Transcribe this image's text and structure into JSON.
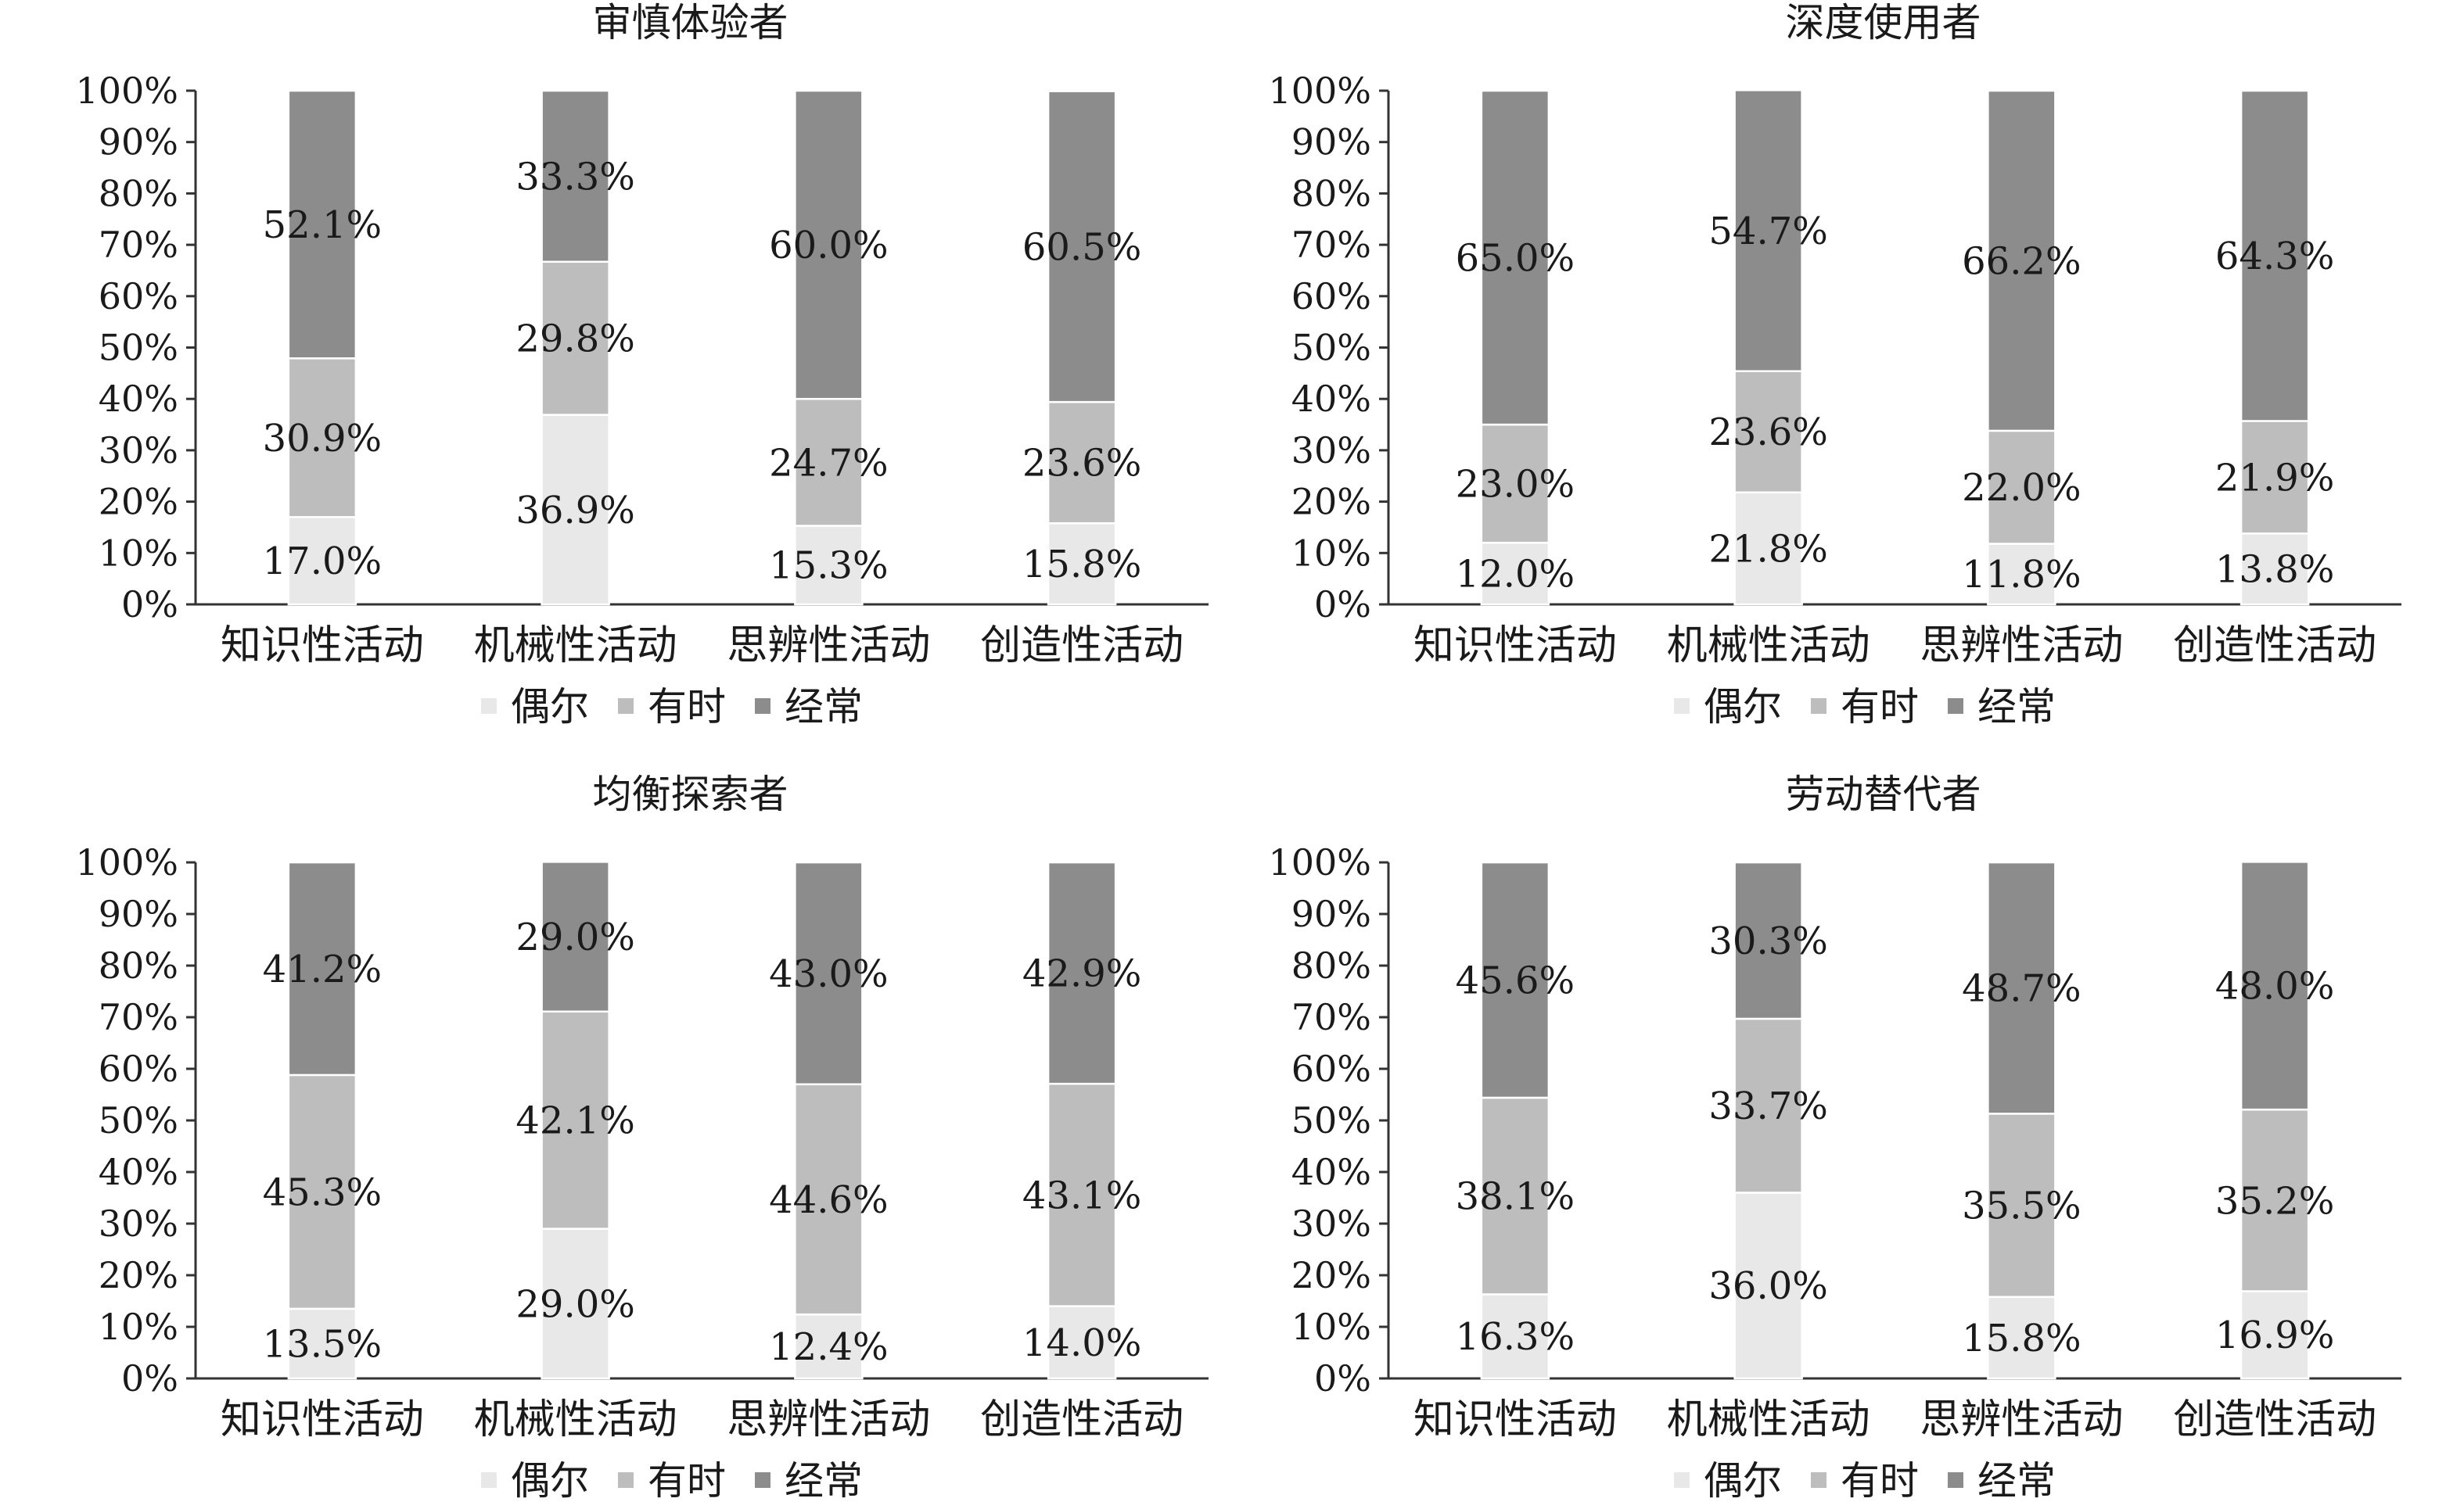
{
  "colors": {
    "occasionally": "#e8e8e8",
    "sometimes": "#bdbdbd",
    "often": "#8c8c8c",
    "axis": "#333333"
  },
  "chart_data": [
    {
      "type": "bar",
      "stacked": true,
      "percent": true,
      "title": "审慎体验者",
      "categories": [
        "知识性活动",
        "机械性活动",
        "思辨性活动",
        "创造性活动"
      ],
      "series": [
        {
          "name": "偶尔",
          "values": [
            17.0,
            36.9,
            15.3,
            15.8
          ],
          "labels": [
            "17.0%",
            "36.9%",
            "15.3%",
            "15.8%"
          ]
        },
        {
          "name": "有时",
          "values": [
            30.9,
            29.8,
            24.7,
            23.6
          ],
          "labels": [
            "30.9%",
            "29.8%",
            "24.7%",
            "23.6%"
          ]
        },
        {
          "name": "经常",
          "values": [
            52.1,
            33.3,
            60.0,
            60.5
          ],
          "labels": [
            "52.1%",
            "33.3%",
            "60.0%",
            "60.5%"
          ]
        }
      ],
      "ylim": [
        0,
        100
      ],
      "yticks": [
        "0%",
        "10%",
        "20%",
        "30%",
        "40%",
        "50%",
        "60%",
        "70%",
        "80%",
        "90%",
        "100%"
      ],
      "legend": "bottom",
      "grid": false
    },
    {
      "type": "bar",
      "stacked": true,
      "percent": true,
      "title": "深度使用者",
      "categories": [
        "知识性活动",
        "机械性活动",
        "思辨性活动",
        "创造性活动"
      ],
      "series": [
        {
          "name": "偶尔",
          "values": [
            12.0,
            21.8,
            11.8,
            13.8
          ],
          "labels": [
            "12.0%",
            "21.8%",
            "11.8%",
            "13.8%"
          ]
        },
        {
          "name": "有时",
          "values": [
            23.0,
            23.6,
            22.0,
            21.9
          ],
          "labels": [
            "23.0%",
            "23.6%",
            "22.0%",
            "21.9%"
          ]
        },
        {
          "name": "经常",
          "values": [
            65.0,
            54.7,
            66.2,
            64.3
          ],
          "labels": [
            "65.0%",
            "54.7%",
            "66.2%",
            "64.3%"
          ]
        }
      ],
      "ylim": [
        0,
        100
      ],
      "yticks": [
        "0%",
        "10%",
        "20%",
        "30%",
        "40%",
        "50%",
        "60%",
        "70%",
        "80%",
        "90%",
        "100%"
      ],
      "legend": "bottom",
      "grid": false
    },
    {
      "type": "bar",
      "stacked": true,
      "percent": true,
      "title": "均衡探索者",
      "categories": [
        "知识性活动",
        "机械性活动",
        "思辨性活动",
        "创造性活动"
      ],
      "series": [
        {
          "name": "偶尔",
          "values": [
            13.5,
            29.0,
            12.4,
            14.0
          ],
          "labels": [
            "13.5%",
            "29.0%",
            "12.4%",
            "14.0%"
          ]
        },
        {
          "name": "有时",
          "values": [
            45.3,
            42.1,
            44.6,
            43.1
          ],
          "labels": [
            "45.3%",
            "42.1%",
            "44.6%",
            "43.1%"
          ]
        },
        {
          "name": "经常",
          "values": [
            41.2,
            29.0,
            43.0,
            42.9
          ],
          "labels": [
            "41.2%",
            "29.0%",
            "43.0%",
            "42.9%"
          ]
        }
      ],
      "ylim": [
        0,
        100
      ],
      "yticks": [
        "0%",
        "10%",
        "20%",
        "30%",
        "40%",
        "50%",
        "60%",
        "70%",
        "80%",
        "90%",
        "100%"
      ],
      "legend": "bottom",
      "grid": false
    },
    {
      "type": "bar",
      "stacked": true,
      "percent": true,
      "title": "劳动替代者",
      "categories": [
        "知识性活动",
        "机械性活动",
        "思辨性活动",
        "创造性活动"
      ],
      "series": [
        {
          "name": "偶尔",
          "values": [
            16.3,
            36.0,
            15.8,
            16.9
          ],
          "labels": [
            "16.3%",
            "36.0%",
            "15.8%",
            "16.9%"
          ]
        },
        {
          "name": "有时",
          "values": [
            38.1,
            33.7,
            35.5,
            35.2
          ],
          "labels": [
            "38.1%",
            "33.7%",
            "35.5%",
            "35.2%"
          ]
        },
        {
          "name": "经常",
          "values": [
            45.6,
            30.3,
            48.7,
            48.0
          ],
          "labels": [
            "45.6%",
            "30.3%",
            "48.7%",
            "48.0%"
          ]
        }
      ],
      "ylim": [
        0,
        100
      ],
      "yticks": [
        "0%",
        "10%",
        "20%",
        "30%",
        "40%",
        "50%",
        "60%",
        "70%",
        "80%",
        "90%",
        "100%"
      ],
      "legend": "bottom",
      "grid": false
    }
  ]
}
